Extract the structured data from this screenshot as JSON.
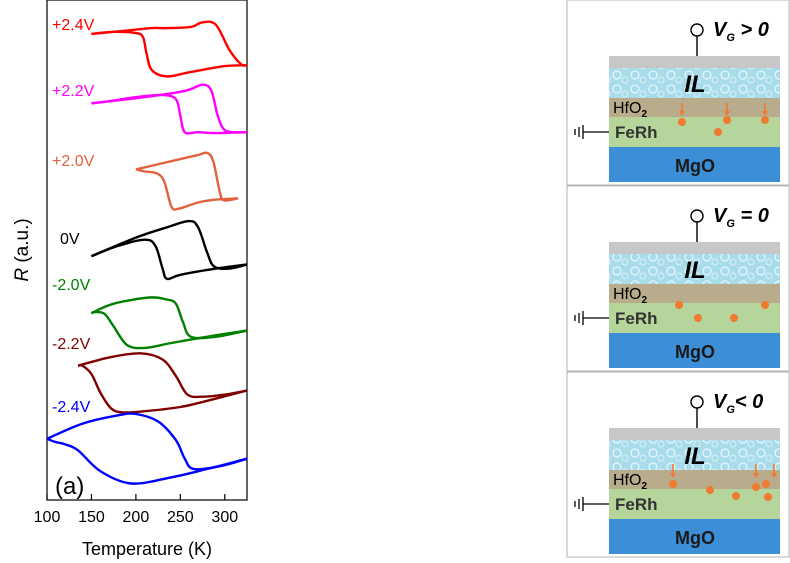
{
  "chart_data": {
    "type": "line",
    "panel_label": "(a)",
    "xlabel": "Temperature (K)",
    "ylabel": "R (a.u.)",
    "ylabel_italic": "R",
    "ylabel_rest": " (a.u.)",
    "xlim": [
      100,
      325
    ],
    "xticks": [
      100,
      150,
      200,
      250,
      300
    ],
    "y_units": "arbitrary, traces vertically offset",
    "grid": false,
    "series": [
      {
        "name": "+2.4V",
        "color": "#ff0000",
        "heating": [
          [
            150,
            9.98
          ],
          [
            190,
            10.06
          ],
          [
            218,
            10.12
          ],
          [
            236,
            10.12
          ],
          [
            262,
            10.15
          ],
          [
            275,
            10.26
          ],
          [
            290,
            10.2
          ],
          [
            305,
            9.6
          ],
          [
            318,
            9.25
          ],
          [
            325,
            9.22
          ]
        ],
        "cooling": [
          [
            325,
            9.22
          ],
          [
            300,
            9.2
          ],
          [
            260,
            9.05
          ],
          [
            235,
            8.95
          ],
          [
            218,
            9.1
          ],
          [
            212,
            9.5
          ],
          [
            208,
            9.9
          ],
          [
            200,
            10.0
          ],
          [
            175,
            10.03
          ],
          [
            150,
            9.98
          ]
        ]
      },
      {
        "name": "+2.2V",
        "color": "#ff00ff",
        "heating": [
          [
            150,
            8.3
          ],
          [
            210,
            8.45
          ],
          [
            255,
            8.6
          ],
          [
            275,
            8.75
          ],
          [
            285,
            8.6
          ],
          [
            292,
            8.0
          ],
          [
            300,
            7.65
          ],
          [
            315,
            7.6
          ],
          [
            325,
            7.6
          ]
        ],
        "cooling": [
          [
            325,
            7.6
          ],
          [
            290,
            7.58
          ],
          [
            270,
            7.6
          ],
          [
            255,
            7.6
          ],
          [
            250,
            8.0
          ],
          [
            245,
            8.4
          ],
          [
            230,
            8.5
          ],
          [
            200,
            8.45
          ],
          [
            170,
            8.35
          ],
          [
            150,
            8.3
          ]
        ]
      },
      {
        "name": "+2.0V",
        "color": "#e2613f",
        "heating": [
          [
            200,
            6.7
          ],
          [
            250,
            6.95
          ],
          [
            270,
            7.05
          ],
          [
            280,
            7.1
          ],
          [
            287,
            6.9
          ],
          [
            295,
            6.1
          ],
          [
            300,
            5.95
          ],
          [
            315,
            6.0
          ]
        ],
        "cooling": [
          [
            315,
            6.0
          ],
          [
            290,
            5.97
          ],
          [
            270,
            5.9
          ],
          [
            248,
            5.75
          ],
          [
            240,
            5.8
          ],
          [
            232,
            6.4
          ],
          [
            224,
            6.6
          ],
          [
            210,
            6.65
          ],
          [
            200,
            6.7
          ]
        ]
      },
      {
        "name": "0V",
        "color": "#000000",
        "heating": [
          [
            150,
            4.6
          ],
          [
            200,
            5.05
          ],
          [
            235,
            5.3
          ],
          [
            260,
            5.45
          ],
          [
            270,
            5.3
          ],
          [
            280,
            4.7
          ],
          [
            288,
            4.35
          ],
          [
            305,
            4.3
          ],
          [
            325,
            4.4
          ]
        ],
        "cooling": [
          [
            325,
            4.4
          ],
          [
            290,
            4.3
          ],
          [
            250,
            4.15
          ],
          [
            235,
            4.05
          ],
          [
            230,
            4.3
          ],
          [
            222,
            4.85
          ],
          [
            210,
            5.0
          ],
          [
            180,
            4.85
          ],
          [
            150,
            4.6
          ]
        ]
      },
      {
        "name": "-2.0V",
        "color": "#008000",
        "heating": [
          [
            150,
            3.22
          ],
          [
            175,
            3.45
          ],
          [
            215,
            3.6
          ],
          [
            235,
            3.55
          ],
          [
            245,
            3.45
          ],
          [
            253,
            3.0
          ],
          [
            262,
            2.65
          ],
          [
            290,
            2.65
          ],
          [
            325,
            2.8
          ]
        ],
        "cooling": [
          [
            325,
            2.8
          ],
          [
            280,
            2.65
          ],
          [
            240,
            2.5
          ],
          [
            210,
            2.38
          ],
          [
            190,
            2.45
          ],
          [
            175,
            2.9
          ],
          [
            165,
            3.2
          ],
          [
            155,
            3.25
          ],
          [
            150,
            3.22
          ]
        ]
      },
      {
        "name": "-2.2V",
        "color": "#800000",
        "heating": [
          [
            135,
            1.95
          ],
          [
            170,
            2.15
          ],
          [
            205,
            2.25
          ],
          [
            230,
            2.1
          ],
          [
            245,
            1.7
          ],
          [
            258,
            1.25
          ],
          [
            275,
            1.2
          ],
          [
            300,
            1.25
          ],
          [
            325,
            1.35
          ]
        ],
        "cooling": [
          [
            325,
            1.35
          ],
          [
            280,
            1.1
          ],
          [
            250,
            0.95
          ],
          [
            210,
            0.85
          ],
          [
            185,
            0.82
          ],
          [
            172,
            0.92
          ],
          [
            160,
            1.3
          ],
          [
            150,
            1.75
          ],
          [
            140,
            1.95
          ],
          [
            135,
            1.95
          ]
        ]
      },
      {
        "name": "-2.4V",
        "color": "#0000ff",
        "heating": [
          [
            100,
            0.18
          ],
          [
            140,
            0.55
          ],
          [
            180,
            0.75
          ],
          [
            200,
            0.78
          ],
          [
            225,
            0.6
          ],
          [
            245,
            0.15
          ],
          [
            255,
            -0.3
          ],
          [
            265,
            -0.55
          ],
          [
            295,
            -0.48
          ],
          [
            325,
            -0.3
          ]
        ],
        "cooling": [
          [
            325,
            -0.3
          ],
          [
            280,
            -0.55
          ],
          [
            240,
            -0.75
          ],
          [
            195,
            -0.9
          ],
          [
            160,
            -0.6
          ],
          [
            135,
            -0.1
          ],
          [
            120,
            0.05
          ],
          [
            110,
            0.1
          ],
          [
            100,
            0.18
          ]
        ]
      }
    ]
  },
  "diagram": {
    "panels": [
      {
        "gate_label": "V",
        "gate_sub": "G",
        "gate_rel": " > 0",
        "ions": "toward-ferh"
      },
      {
        "gate_label": "V",
        "gate_sub": "G",
        "gate_rel": " = 0",
        "ions": "none"
      },
      {
        "gate_label": "V",
        "gate_sub": "G",
        "gate_rel": "< 0",
        "ions": "toward-hfo2"
      }
    ],
    "layers": {
      "il": "IL",
      "hfo2": "HfO",
      "hfo2_sub": "2",
      "ferh": "FeRh",
      "mgo": "MgO"
    },
    "colors": {
      "electrode": "#c7c7c7",
      "il": "#a8dcea",
      "hfo2": "#b8ac8c",
      "ferh": "#b5d59a",
      "mgo": "#3c8fd6",
      "ion": "#f07a30"
    }
  }
}
